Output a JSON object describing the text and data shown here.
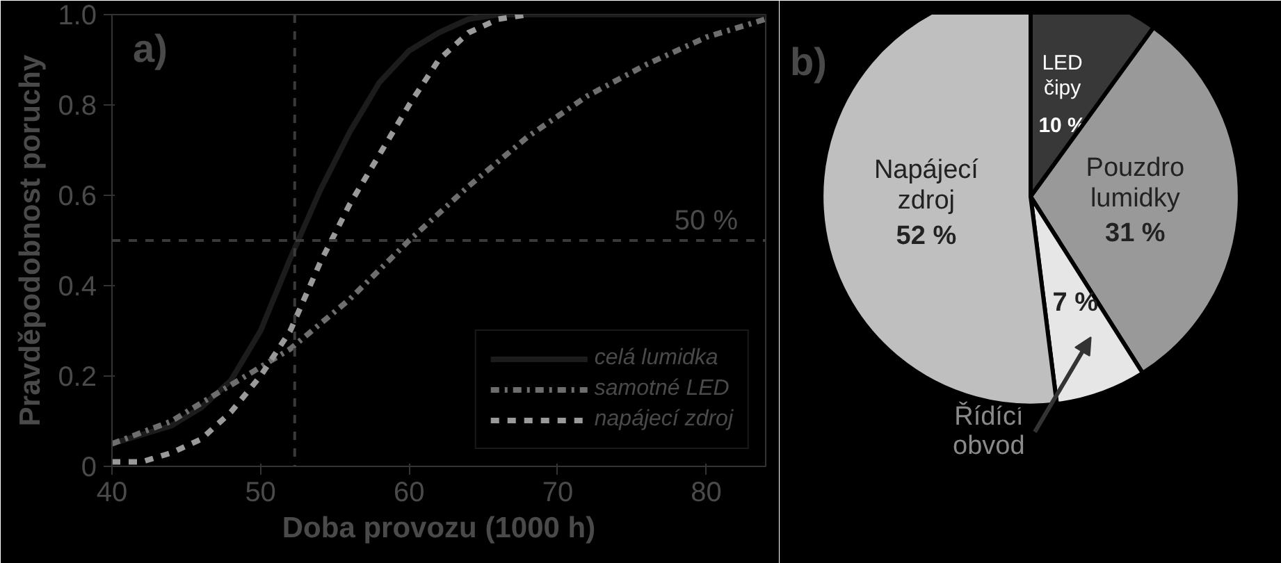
{
  "chart_data": [
    {
      "type": "line",
      "xlabel": "Doba provozu (1000 h)",
      "ylabel": "Pravděpodobnost poruchy",
      "annotations": [
        "a)"
      ],
      "xlim": [
        40,
        84
      ],
      "ylim": [
        0,
        1
      ],
      "xticks": [
        40,
        50,
        60,
        70,
        80
      ],
      "yticks": [
        {
          "value": 0,
          "label": "0"
        },
        0.2,
        0.4,
        0.6,
        0.8,
        {
          "value": 1,
          "label": "1.0"
        }
      ],
      "grid": false,
      "legend": "bottom right",
      "marker": "none",
      "series": [
        {
          "name": "celá lumidka",
          "color": "#1c1c1c",
          "line_style": "solid",
          "x": [
            40,
            42,
            44,
            46,
            48,
            50,
            52,
            54,
            56,
            58,
            60,
            62,
            64,
            66,
            84
          ],
          "values": [
            0.05,
            0.07,
            0.09,
            0.13,
            0.19,
            0.3,
            0.46,
            0.61,
            0.74,
            0.85,
            0.92,
            0.96,
            0.99,
            1.0,
            1.0
          ]
        },
        {
          "name": "samotné LED",
          "color": "#6e6e6e",
          "line_style": "dashdot",
          "x": [
            40,
            44,
            48,
            52,
            56,
            60,
            64,
            68,
            72,
            76,
            80,
            84
          ],
          "values": [
            0.05,
            0.1,
            0.18,
            0.26,
            0.37,
            0.5,
            0.62,
            0.73,
            0.82,
            0.89,
            0.95,
            0.99
          ]
        },
        {
          "name": "napájecí zdroj",
          "color": "#9a9a9a",
          "line_style": "dashed",
          "x": [
            40,
            42,
            44,
            46,
            48,
            50,
            52,
            54,
            56,
            58,
            60,
            62,
            64,
            66,
            68
          ],
          "values": [
            0.01,
            0.01,
            0.03,
            0.06,
            0.12,
            0.2,
            0.3,
            0.45,
            0.58,
            0.69,
            0.8,
            0.9,
            0.96,
            0.99,
            1.0
          ]
        }
      ],
      "ref_lines": [
        {
          "axis": "x",
          "value": 52.3,
          "label": null,
          "line_style": "dashed"
        },
        {
          "axis": "y",
          "value": 0.5,
          "label": "50 %",
          "line_style": "dashed"
        }
      ]
    },
    {
      "type": "pie",
      "annotations": [
        "b)"
      ],
      "categories": [
        "LED čipy",
        "Pouzdro lumidky",
        "Řídící obvod",
        "Napájecí zdroj"
      ],
      "values": [
        10,
        31,
        7,
        52
      ],
      "colors": [
        "#383838",
        "#999999",
        "#e6e6e6",
        "#bfbfbf"
      ],
      "value_labels": [
        "10 %",
        "31 %",
        "7 %",
        "52 %"
      ]
    }
  ]
}
